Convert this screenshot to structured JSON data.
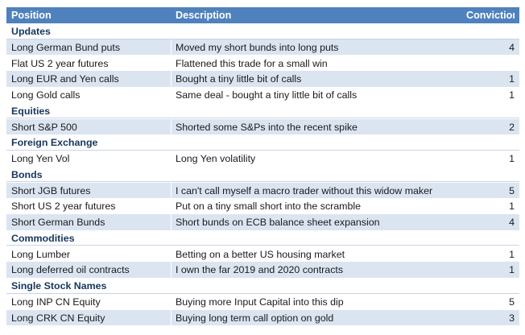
{
  "header": {
    "position": "Position",
    "description": "Description",
    "conviction": "Conviction"
  },
  "sections": [
    {
      "title": "Updates",
      "rows": [
        {
          "position": "Long German Bund puts",
          "description": "Moved my short bunds into long puts",
          "conviction": "4"
        },
        {
          "position": "Flat US 2 year futures",
          "description": "Flattened this trade for a small win",
          "conviction": ""
        },
        {
          "position": "Long EUR and Yen calls",
          "description": "Bought a tiny little bit of calls",
          "conviction": "1"
        },
        {
          "position": "Long Gold calls",
          "description": "Same deal - bought a tiny little bit of calls",
          "conviction": "1"
        }
      ]
    },
    {
      "title": "Equities",
      "rows": [
        {
          "position": "Short S&P 500",
          "description": "Shorted some S&Ps into the recent spike",
          "conviction": "2"
        }
      ]
    },
    {
      "title": "Foreign Exchange",
      "rows": [
        {
          "position": "Long Yen Vol",
          "description": "Long Yen volatility",
          "conviction": "1"
        }
      ]
    },
    {
      "title": "Bonds",
      "rows": [
        {
          "position": "Short JGB futures",
          "description": "I can't call myself a macro trader without this widow maker",
          "conviction": "5"
        },
        {
          "position": "Short US 2 year futures",
          "description": "Put on a tiny small short into the scramble",
          "conviction": "1"
        },
        {
          "position": "Short German Bunds",
          "description": "Short bunds on ECB balance sheet expansion",
          "conviction": "4"
        }
      ]
    },
    {
      "title": "Commodities",
      "rows": [
        {
          "position": "Long Lumber",
          "description": "Betting on a better US housing market",
          "conviction": "1"
        },
        {
          "position": "Long deferred oil contracts",
          "description": "I own the far 2019 and 2020 contracts",
          "conviction": "1"
        }
      ]
    },
    {
      "title": "Single Stock Names",
      "rows": [
        {
          "position": "Long INP CN Equity",
          "description": "Buying more Input Capital into this dip",
          "conviction": "5"
        },
        {
          "position": "Long CRK CN Equity",
          "description": "Buying long term call option on gold",
          "conviction": "3"
        }
      ]
    }
  ]
}
